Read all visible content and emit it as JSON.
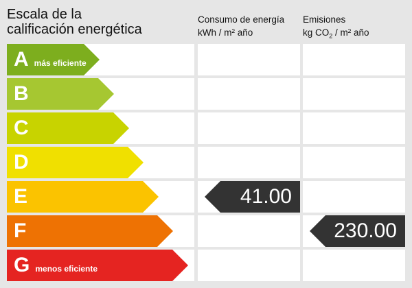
{
  "title_line1": "Escala de la",
  "title_line2": "calificación energética",
  "consumo": {
    "line1": "Consumo de energía",
    "unit": "kWh / m² año"
  },
  "emisiones": {
    "line1": "Emisiones",
    "unit_pre": "kg CO",
    "unit_sub": "2",
    "unit_post": " / m² año"
  },
  "ratings": [
    {
      "letter": "A",
      "label": "más eficiente",
      "color": "#7dae1e"
    },
    {
      "letter": "B",
      "label": "",
      "color": "#a6c731"
    },
    {
      "letter": "C",
      "label": "",
      "color": "#c8d300"
    },
    {
      "letter": "D",
      "label": "",
      "color": "#f0e000"
    },
    {
      "letter": "E",
      "label": "",
      "color": "#fbc300"
    },
    {
      "letter": "F",
      "label": "",
      "color": "#ee7203"
    },
    {
      "letter": "G",
      "label": "menos eficiente",
      "color": "#e52421"
    }
  ],
  "consumo_value": {
    "rating": "E",
    "value": "41.00"
  },
  "emisiones_value": {
    "rating": "F",
    "value": "230.00"
  }
}
